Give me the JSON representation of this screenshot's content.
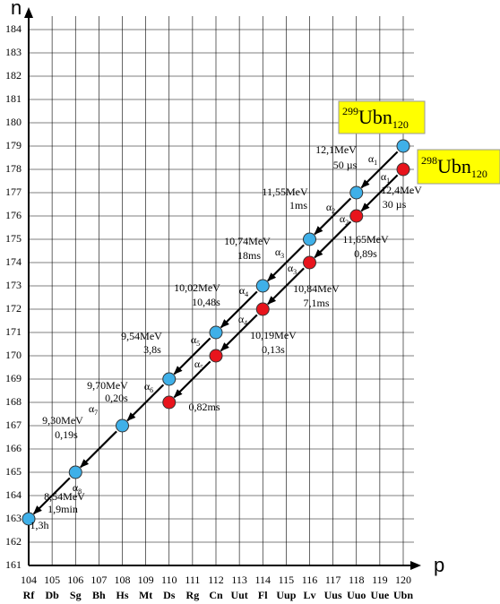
{
  "chart_data": {
    "type": "scatter",
    "x_label": "p",
    "y_label": "n",
    "xlim": [
      104,
      120
    ],
    "ylim": [
      161,
      184
    ],
    "xticks": [
      104,
      105,
      106,
      107,
      108,
      109,
      110,
      111,
      112,
      113,
      114,
      115,
      116,
      117,
      118,
      119,
      120
    ],
    "xtick_elements": [
      "Rf",
      "Db",
      "Sg",
      "Bh",
      "Hs",
      "Mt",
      "Ds",
      "Rg",
      "Cn",
      "Uut",
      "Fl",
      "Uup",
      "Lv",
      "Uus",
      "Uuo",
      "Uue",
      "Ubn"
    ],
    "yticks": [
      161,
      162,
      163,
      164,
      165,
      166,
      167,
      168,
      169,
      170,
      171,
      172,
      173,
      174,
      175,
      176,
      177,
      178,
      179,
      180,
      181,
      182,
      183,
      184
    ],
    "grid": true,
    "alpha_symbol": "α",
    "series": [
      {
        "name_parts": {
          "mass": "299",
          "symbol": "Ubn",
          "z": "120"
        },
        "color": "#3fb0e8",
        "x": [
          120,
          118,
          116,
          114,
          112,
          110,
          108,
          106,
          104
        ],
        "y": [
          179,
          177,
          175,
          173,
          171,
          169,
          167,
          165,
          163
        ],
        "annotations": [
          {
            "energy": "12,1MeV",
            "time": "50 µs",
            "alpha": "1"
          },
          {
            "energy": "11,55MeV",
            "time": "1ms",
            "alpha": "2"
          },
          {
            "energy": "10,74MeV",
            "time": "18ms",
            "alpha": "3"
          },
          {
            "energy": "10,02MeV",
            "time": "10,48s",
            "alpha": "4"
          },
          {
            "energy": "9,54MeV",
            "time": "3,8s",
            "alpha": "5"
          },
          {
            "energy": "9,70MeV",
            "time": "0,20s",
            "alpha": "6"
          },
          {
            "energy": "9,30MeV",
            "time": "0,19s",
            "alpha": "7"
          },
          {
            "energy": "8,54MeV",
            "time": "1,9min",
            "alpha": "8"
          },
          {
            "time": "1,3h"
          }
        ]
      },
      {
        "name_parts": {
          "mass": "298",
          "symbol": "Ubn",
          "z": "120"
        },
        "color": "#e8141c",
        "x": [
          120,
          118,
          116,
          114,
          112,
          110
        ],
        "y": [
          178,
          176,
          174,
          172,
          170,
          168
        ],
        "annotations": [
          {
            "energy": "12,4MeV",
            "time": "30 µs",
            "alpha": "1"
          },
          {
            "energy": "11,65MeV",
            "time": "0,89s",
            "alpha": "2"
          },
          {
            "energy": "10,84MeV",
            "time": "7,1ms",
            "alpha": "3"
          },
          {
            "energy": "10,19MeV",
            "time": "0,13s",
            "alpha": "4"
          },
          {
            "alpha": "5"
          },
          {
            "time": "0,82ms"
          }
        ]
      }
    ]
  }
}
